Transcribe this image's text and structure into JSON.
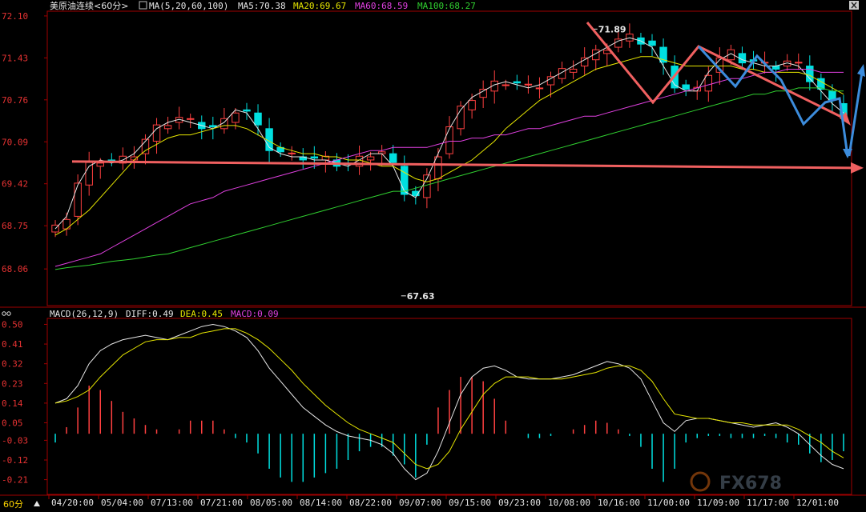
{
  "chart_data": [
    {
      "type": "candlestick",
      "title": "美原油连续<60分>",
      "indicator_title": "MA(5,20,60,100)",
      "legend": [
        {
          "name": "MA5",
          "label": "MA5:70.38",
          "color": "#e6e6e6"
        },
        {
          "name": "MA20",
          "label": "MA20:69.67",
          "color": "#e6e600"
        },
        {
          "name": "MA60",
          "label": "MA60:68.59",
          "color": "#e040e0"
        },
        {
          "name": "MA100",
          "label": "MA100:68.27",
          "color": "#30d030"
        }
      ],
      "y_ticks": [
        "72.10",
        "71.43",
        "70.76",
        "70.09",
        "69.42",
        "68.75",
        "68.06"
      ],
      "ylim": [
        67.5,
        72.15
      ],
      "annotations": [
        {
          "label": "71.89",
          "value": 71.89,
          "kind": "high"
        },
        {
          "label": "67.63",
          "value": 67.63,
          "kind": "low"
        }
      ],
      "horizontal_line": {
        "value": 69.75,
        "color": "#f06060"
      },
      "ma_series": {
        "MA5": [
          68.7,
          68.9,
          69.4,
          69.7,
          69.8,
          69.75,
          69.8,
          69.9,
          70.1,
          70.3,
          70.4,
          70.45,
          70.4,
          70.35,
          70.3,
          70.4,
          70.6,
          70.55,
          70.3,
          70.0,
          69.9,
          69.85,
          69.85,
          69.8,
          69.8,
          69.75,
          69.7,
          69.8,
          69.9,
          69.9,
          69.7,
          69.3,
          69.2,
          69.5,
          69.9,
          70.3,
          70.6,
          70.8,
          70.9,
          71.0,
          71.05,
          71.0,
          70.95,
          71.0,
          71.1,
          71.2,
          71.3,
          71.4,
          71.5,
          71.6,
          71.7,
          71.75,
          71.7,
          71.6,
          71.3,
          71.0,
          70.9,
          70.9,
          71.2,
          71.4,
          71.5,
          71.4,
          71.35,
          71.3,
          71.3,
          71.35,
          71.3,
          71.1,
          70.9,
          70.7,
          70.55
        ],
        "MA20": [
          68.6,
          68.7,
          68.85,
          69.0,
          69.2,
          69.4,
          69.6,
          69.8,
          69.95,
          70.05,
          70.15,
          70.2,
          70.2,
          70.25,
          70.3,
          70.35,
          70.35,
          70.3,
          70.2,
          70.1,
          70.0,
          69.95,
          69.9,
          69.9,
          69.85,
          69.85,
          69.8,
          69.8,
          69.75,
          69.7,
          69.7,
          69.6,
          69.5,
          69.45,
          69.5,
          69.6,
          69.7,
          69.8,
          69.95,
          70.1,
          70.3,
          70.45,
          70.6,
          70.75,
          70.85,
          70.95,
          71.05,
          71.15,
          71.25,
          71.3,
          71.35,
          71.4,
          71.45,
          71.45,
          71.4,
          71.35,
          71.3,
          71.3,
          71.3,
          71.3,
          71.3,
          71.25,
          71.25,
          71.2,
          71.2,
          71.2,
          71.2,
          71.15,
          71.05,
          70.95,
          70.85
        ],
        "MA60": [
          68.1,
          68.15,
          68.2,
          68.25,
          68.3,
          68.4,
          68.5,
          68.6,
          68.7,
          68.8,
          68.9,
          69.0,
          69.1,
          69.15,
          69.2,
          69.3,
          69.35,
          69.4,
          69.45,
          69.5,
          69.55,
          69.6,
          69.65,
          69.7,
          69.75,
          69.8,
          69.85,
          69.9,
          69.95,
          69.95,
          70.0,
          70.0,
          70.0,
          70.0,
          70.05,
          70.1,
          70.1,
          70.15,
          70.15,
          70.2,
          70.2,
          70.25,
          70.3,
          70.3,
          70.35,
          70.4,
          70.45,
          70.5,
          70.5,
          70.55,
          70.6,
          70.65,
          70.7,
          70.75,
          70.8,
          70.85,
          70.9,
          70.95,
          71.0,
          71.05,
          71.1,
          71.1,
          71.15,
          71.2,
          71.2,
          71.25,
          71.25,
          71.25,
          71.2,
          71.2,
          71.2
        ],
        "MA100": [
          68.05,
          68.08,
          68.1,
          68.12,
          68.15,
          68.18,
          68.2,
          68.22,
          68.25,
          68.28,
          68.3,
          68.35,
          68.4,
          68.45,
          68.5,
          68.55,
          68.6,
          68.65,
          68.7,
          68.75,
          68.8,
          68.85,
          68.9,
          68.95,
          69.0,
          69.05,
          69.1,
          69.15,
          69.2,
          69.25,
          69.3,
          69.3,
          69.35,
          69.4,
          69.45,
          69.5,
          69.55,
          69.6,
          69.65,
          69.7,
          69.75,
          69.8,
          69.85,
          69.9,
          69.95,
          70.0,
          70.05,
          70.1,
          70.15,
          70.2,
          70.25,
          70.3,
          70.35,
          70.4,
          70.45,
          70.5,
          70.55,
          70.6,
          70.65,
          70.7,
          70.75,
          70.8,
          70.85,
          70.85,
          70.9,
          70.9,
          70.95,
          70.95,
          70.95,
          70.9,
          70.9
        ]
      }
    },
    {
      "type": "bar",
      "title": "MACD(26,12,9)",
      "legend": [
        {
          "name": "DIFF",
          "label": "DIFF:0.49",
          "color": "#e6e6e6"
        },
        {
          "name": "DEA",
          "label": "DEA:0.45",
          "color": "#e6e600"
        },
        {
          "name": "MACD",
          "label": "MACD:0.09",
          "color": "#e040e0"
        }
      ],
      "y_ticks": [
        "0.50",
        "0.41",
        "0.32",
        "0.23",
        "0.14",
        "0.05",
        "-0.03",
        "-0.12",
        "-0.21"
      ],
      "ylim": [
        -0.27,
        0.52
      ],
      "diff_series": [
        0.14,
        0.16,
        0.22,
        0.32,
        0.38,
        0.41,
        0.43,
        0.44,
        0.45,
        0.44,
        0.43,
        0.45,
        0.47,
        0.49,
        0.5,
        0.49,
        0.47,
        0.44,
        0.38,
        0.3,
        0.24,
        0.18,
        0.12,
        0.08,
        0.04,
        0.01,
        -0.01,
        -0.02,
        -0.03,
        -0.05,
        -0.09,
        -0.16,
        -0.21,
        -0.18,
        -0.08,
        0.05,
        0.18,
        0.26,
        0.3,
        0.31,
        0.29,
        0.26,
        0.25,
        0.25,
        0.25,
        0.26,
        0.27,
        0.29,
        0.31,
        0.33,
        0.32,
        0.3,
        0.25,
        0.15,
        0.05,
        0.01,
        0.06,
        0.07,
        0.07,
        0.06,
        0.05,
        0.04,
        0.03,
        0.04,
        0.05,
        0.03,
        0.0,
        -0.05,
        -0.1,
        -0.14,
        -0.16
      ],
      "dea_series": [
        0.14,
        0.15,
        0.17,
        0.2,
        0.26,
        0.31,
        0.36,
        0.39,
        0.42,
        0.43,
        0.43,
        0.44,
        0.44,
        0.46,
        0.47,
        0.48,
        0.48,
        0.46,
        0.43,
        0.39,
        0.34,
        0.29,
        0.23,
        0.18,
        0.13,
        0.09,
        0.05,
        0.02,
        0.0,
        -0.02,
        -0.04,
        -0.09,
        -0.14,
        -0.16,
        -0.14,
        -0.08,
        0.02,
        0.1,
        0.18,
        0.23,
        0.26,
        0.26,
        0.26,
        0.25,
        0.25,
        0.25,
        0.26,
        0.27,
        0.28,
        0.3,
        0.31,
        0.31,
        0.29,
        0.24,
        0.16,
        0.09,
        0.08,
        0.07,
        0.07,
        0.06,
        0.05,
        0.05,
        0.04,
        0.04,
        0.04,
        0.04,
        0.02,
        -0.01,
        -0.04,
        -0.08,
        -0.11
      ],
      "histogram": [
        -0.04,
        0.03,
        0.12,
        0.22,
        0.2,
        0.15,
        0.1,
        0.07,
        0.04,
        0.02,
        0.0,
        0.02,
        0.06,
        0.06,
        0.06,
        0.02,
        -0.02,
        -0.04,
        -0.09,
        -0.16,
        -0.2,
        -0.22,
        -0.22,
        -0.2,
        -0.18,
        -0.16,
        -0.12,
        -0.08,
        -0.06,
        -0.06,
        -0.1,
        -0.14,
        -0.2,
        -0.05,
        0.12,
        0.2,
        0.26,
        0.26,
        0.24,
        0.16,
        0.06,
        0.0,
        -0.02,
        -0.02,
        -0.01,
        0.0,
        0.02,
        0.04,
        0.06,
        0.05,
        0.02,
        -0.01,
        -0.06,
        -0.16,
        -0.22,
        -0.16,
        -0.04,
        -0.02,
        -0.01,
        -0.01,
        -0.02,
        -0.02,
        -0.02,
        -0.01,
        -0.02,
        -0.04,
        -0.05,
        -0.09,
        -0.13,
        -0.12,
        -0.08
      ]
    }
  ],
  "x_ticks": [
    "04/20:00",
    "05/04:00",
    "07/13:00",
    "07/21:00",
    "08/05:00",
    "08/14:00",
    "08/22:00",
    "09/07:00",
    "09/15:00",
    "09/23:00",
    "10/08:00",
    "10/16:00",
    "11/00:00",
    "11/09:00",
    "11/17:00",
    "12/01:00"
  ],
  "period_label": "60分",
  "watermark": "FX678",
  "colors": {
    "up": "#ff4040",
    "down": "#00e0e0",
    "axis": "#a00000",
    "tick_text": "#e63232",
    "arrow_red": "#f06060",
    "arrow_blue": "#3c8cdc",
    "cross_text": "#1e1e1e"
  }
}
